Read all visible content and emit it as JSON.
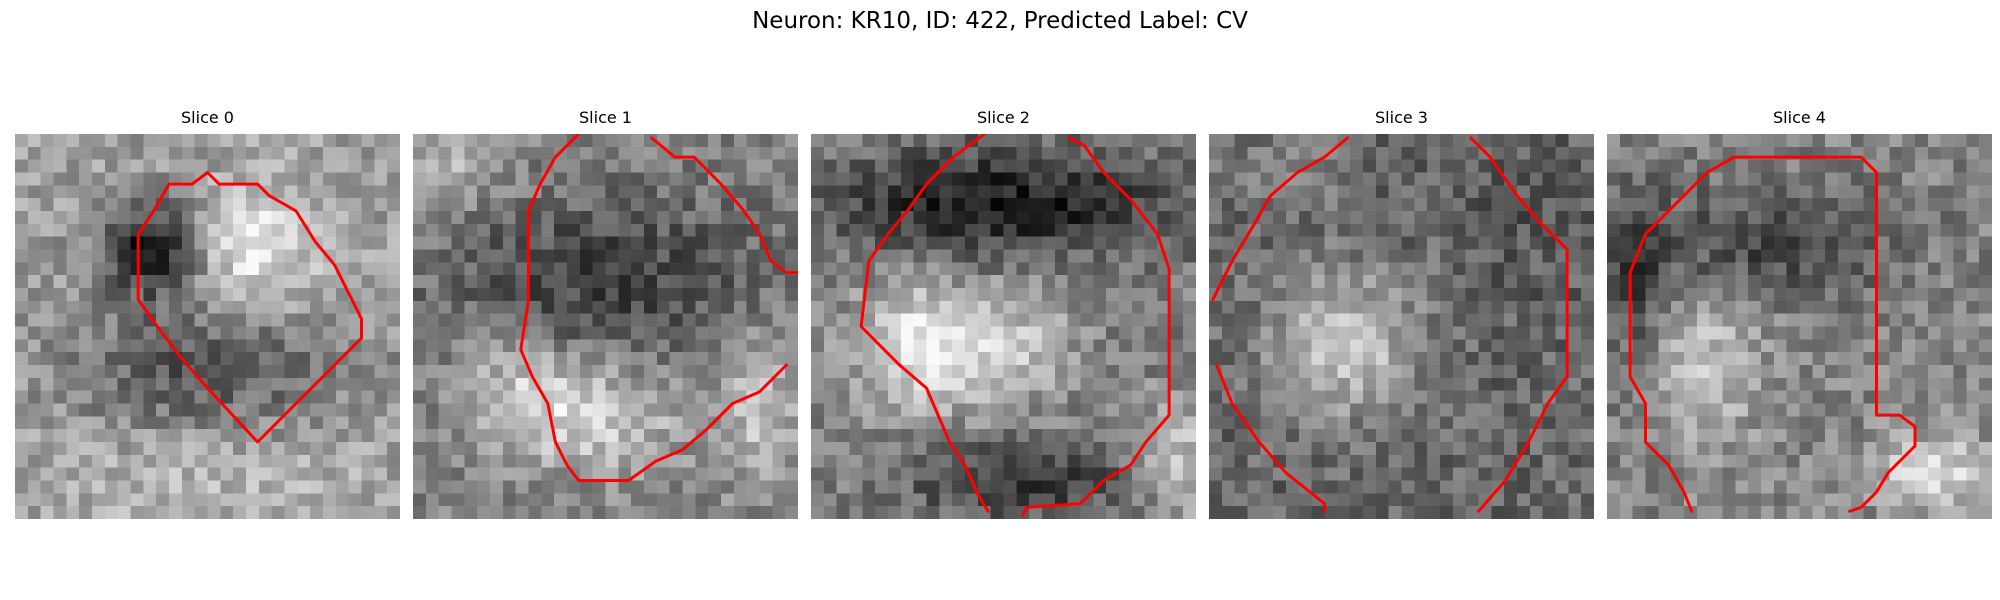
{
  "figure": {
    "title": "Neuron: KR10, ID: 422, Predicted Label: CV",
    "contour_color": "#ff0000",
    "colormap": "gray",
    "panels": [
      {
        "title": "Slice 0"
      },
      {
        "title": "Slice 1"
      },
      {
        "title": "Slice 2"
      },
      {
        "title": "Slice 3"
      },
      {
        "title": "Slice 4"
      }
    ]
  }
}
